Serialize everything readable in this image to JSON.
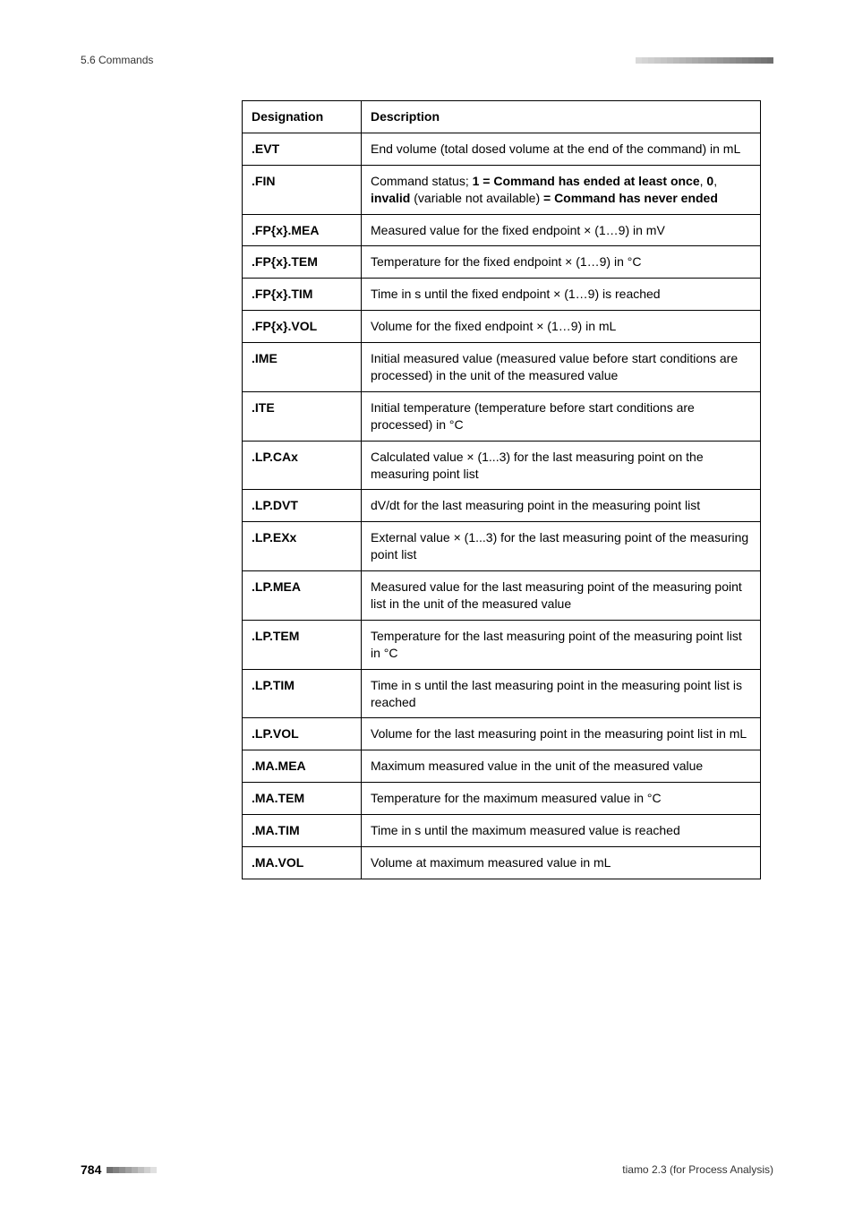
{
  "header": {
    "section": "5.6 Commands",
    "top_ticks_count": 22,
    "top_ticks_colors": [
      "#d9d9d9",
      "#d4d4d4",
      "#cfcfcf",
      "#cacaca",
      "#c5c5c5",
      "#c0c0c0",
      "#bbbbbb",
      "#b6b6b6",
      "#b1b1b1",
      "#acacac",
      "#a7a7a7",
      "#a2a2a2",
      "#9d9d9d",
      "#989898",
      "#939393",
      "#8e8e8e",
      "#898989",
      "#848484",
      "#7f7f7f",
      "#7a7a7a",
      "#757575",
      "#707070"
    ]
  },
  "table": {
    "columns": [
      "Designation",
      "Description"
    ],
    "rows": [
      {
        "designation": ".EVT",
        "description_plain": "End volume (total dosed volume at the end of the command) in mL"
      },
      {
        "designation": ".FIN",
        "description_parts": [
          {
            "text": "Command status; ",
            "bold": false
          },
          {
            "text": "1 = Command has ended at least once",
            "bold": true
          },
          {
            "text": ", ",
            "bold": false
          },
          {
            "text": "0",
            "bold": true
          },
          {
            "text": ", ",
            "bold": false
          },
          {
            "text": "invalid",
            "bold": true
          },
          {
            "text": " (variable not available) ",
            "bold": false
          },
          {
            "text": "= Command has never ended",
            "bold": true
          }
        ]
      },
      {
        "designation": ".FP{x}.MEA",
        "description_plain": "Measured value for the fixed endpoint × (1…9) in mV"
      },
      {
        "designation": ".FP{x}.TEM",
        "description_plain": "Temperature for the fixed endpoint × (1…9) in °C"
      },
      {
        "designation": ".FP{x}.TIM",
        "description_plain": "Time in s until the fixed endpoint × (1…9) is reached"
      },
      {
        "designation": ".FP{x}.VOL",
        "description_plain": "Volume for the fixed endpoint × (1…9) in mL"
      },
      {
        "designation": ".IME",
        "description_plain": "Initial measured value (measured value before start conditions are processed) in the unit of the measured value"
      },
      {
        "designation": ".ITE",
        "description_plain": "Initial temperature (temperature before start conditions are processed) in °C"
      },
      {
        "designation": ".LP.CAx",
        "description_plain": "Calculated value × (1...3) for the last measuring point on the measuring point list"
      },
      {
        "designation": ".LP.DVT",
        "description_plain": "dV/dt for the last measuring point in the measuring point list"
      },
      {
        "designation": ".LP.EXx",
        "description_plain": "External value × (1...3) for the last measuring point of the measuring point list"
      },
      {
        "designation": ".LP.MEA",
        "description_plain": "Measured value for the last measuring point of the measuring point list in the unit of the measured value"
      },
      {
        "designation": ".LP.TEM",
        "description_plain": "Temperature for the last measuring point of the measuring point list in °C"
      },
      {
        "designation": ".LP.TIM",
        "description_plain": "Time in s until the last measuring point in the measuring point list is reached"
      },
      {
        "designation": ".LP.VOL",
        "description_plain": "Volume for the last measuring point in the measuring point list in mL"
      },
      {
        "designation": ".MA.MEA",
        "description_plain": "Maximum measured value in the unit of the measured value"
      },
      {
        "designation": ".MA.TEM",
        "description_plain": "Temperature for the maximum measured value in °C"
      },
      {
        "designation": ".MA.TIM",
        "description_plain": "Time in s until the maximum measured value is reached"
      },
      {
        "designation": ".MA.VOL",
        "description_plain": "Volume at maximum measured value in mL"
      }
    ]
  },
  "footer": {
    "page": "784",
    "bottom_ticks_count": 8,
    "bottom_ticks_colors": [
      "#707070",
      "#808080",
      "#909090",
      "#a0a0a0",
      "#b0b0b0",
      "#c0c0c0",
      "#d0d0d0",
      "#e0e0e0"
    ],
    "right_text": "tiamo 2.3 (for Process Analysis)"
  }
}
